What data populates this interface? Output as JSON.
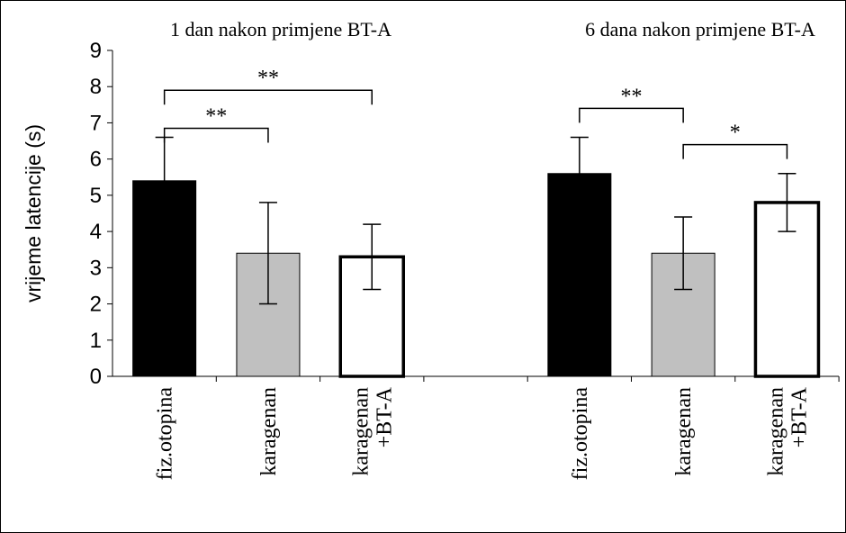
{
  "chart_data": {
    "type": "bar",
    "ylabel": "vrijeme latencije (s)",
    "ylim": [
      0,
      9
    ],
    "yticks": [
      "0",
      "1",
      "2",
      "3",
      "4",
      "5",
      "6",
      "7",
      "8",
      "9"
    ],
    "grid": false,
    "groups": [
      {
        "title": "1 dan nakon primjene BT-A",
        "bars": [
          {
            "label": "fiz.otopina",
            "value": 5.4,
            "error": 1.2,
            "color": "#000000"
          },
          {
            "label": "karagenan",
            "value": 3.4,
            "error": 1.4,
            "color": "#c0c0c0"
          },
          {
            "label_lines": [
              "karagenan",
              "+BT-A"
            ],
            "value": 3.3,
            "error": 0.9,
            "color": "#ffffff"
          }
        ],
        "significance": [
          {
            "from": 0,
            "to": 1,
            "label": "**",
            "level": 6.85
          },
          {
            "from": 0,
            "to": 2,
            "label": "**",
            "level": 7.9
          }
        ]
      },
      {
        "title": "6 dana nakon primjene BT-A",
        "bars": [
          {
            "label": "fiz.otopina",
            "value": 5.6,
            "error": 1.0,
            "color": "#000000"
          },
          {
            "label": "karagenan",
            "value": 3.4,
            "error": 1.0,
            "color": "#c0c0c0"
          },
          {
            "label_lines": [
              "karagenan",
              "+BT-A"
            ],
            "value": 4.8,
            "error": 0.8,
            "color": "#ffffff"
          }
        ],
        "significance": [
          {
            "from": 0,
            "to": 1,
            "label": "**",
            "level": 7.4
          },
          {
            "from": 1,
            "to": 2,
            "label": "*",
            "level": 6.4
          }
        ]
      }
    ]
  }
}
